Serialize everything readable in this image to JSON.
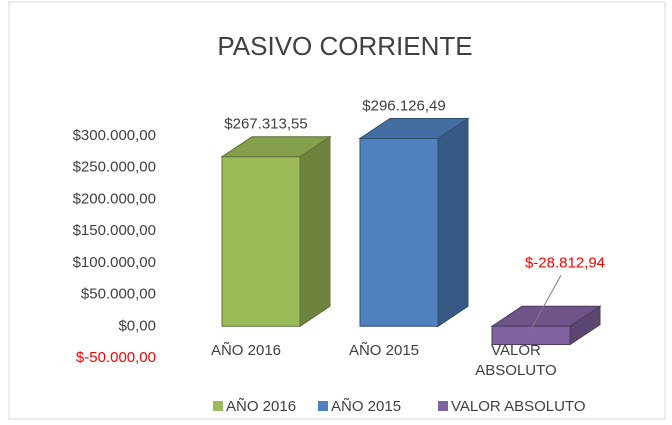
{
  "chart_data": {
    "type": "bar3d",
    "title": "PASIVO CORRIENTE",
    "categories": [
      "AÑO 2016",
      "AÑO 2015",
      "VALOR ABSOLUTO"
    ],
    "values": [
      267313.55,
      296126.49,
      -28812.94
    ],
    "value_labels": [
      "$267.313,55",
      "$296.126,49",
      "$-28.812,94"
    ],
    "colors": [
      "#9bbb59",
      "#4f81bd",
      "#8064a2"
    ],
    "negative_color": "#ff0000",
    "ylim": [
      -50000,
      300000
    ],
    "yticks": [
      {
        "value": -50000,
        "label": "$-50.000,00"
      },
      {
        "value": 0,
        "label": "$0,00"
      },
      {
        "value": 50000,
        "label": "$50.000,00"
      },
      {
        "value": 100000,
        "label": "$100.000,00"
      },
      {
        "value": 150000,
        "label": "$150.000,00"
      },
      {
        "value": 200000,
        "label": "$200.000,00"
      },
      {
        "value": 250000,
        "label": "$250.000,00"
      },
      {
        "value": 300000,
        "label": "$300.000,00"
      }
    ],
    "grid": false,
    "legend": "bottom"
  }
}
